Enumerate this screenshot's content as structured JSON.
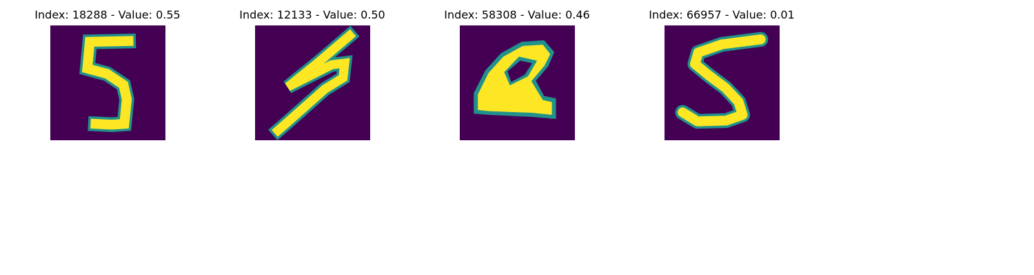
{
  "panels": [
    {
      "title": "Index: 18288 - Value: 0.55"
    },
    {
      "title": "Index: 12133 - Value: 0.50"
    },
    {
      "title": "Index: 58308 - Value: 0.46"
    },
    {
      "title": "Index: 66957 - Value: 0.01"
    }
  ],
  "colors": {
    "background_cell": "#440154",
    "mid_edge": "#21918c",
    "stroke": "#fde725"
  }
}
